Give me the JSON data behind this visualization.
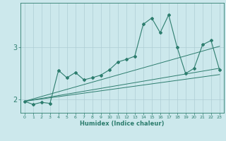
{
  "xlabel": "Humidex (Indice chaleur)",
  "bg_color": "#cce8ec",
  "line_color": "#2d7d6e",
  "grid_color": "#aecdd4",
  "xlim": [
    -0.5,
    23.5
  ],
  "ylim": [
    1.75,
    3.85
  ],
  "xtick_labels": [
    "0",
    "1",
    "2",
    "3",
    "4",
    "5",
    "6",
    "7",
    "8",
    "9",
    "10",
    "11",
    "12",
    "13",
    "14",
    "15",
    "16",
    "17",
    "18",
    "19",
    "20",
    "21",
    "22",
    "23"
  ],
  "xtick_vals": [
    0,
    1,
    2,
    3,
    4,
    5,
    6,
    7,
    8,
    9,
    10,
    11,
    12,
    13,
    14,
    15,
    16,
    17,
    18,
    19,
    20,
    21,
    22,
    23
  ],
  "ytick_vals": [
    2,
    3
  ],
  "ytick_labels": [
    "2",
    "3"
  ],
  "main_line_x": [
    0,
    1,
    2,
    3,
    4,
    5,
    6,
    7,
    8,
    9,
    10,
    11,
    12,
    13,
    14,
    15,
    16,
    17,
    18,
    19,
    20,
    21,
    22,
    23
  ],
  "main_line_y": [
    1.97,
    1.91,
    1.95,
    1.93,
    2.56,
    2.42,
    2.52,
    2.38,
    2.42,
    2.47,
    2.57,
    2.72,
    2.77,
    2.83,
    3.44,
    3.56,
    3.28,
    3.62,
    3.0,
    2.5,
    2.6,
    3.05,
    3.13,
    2.57
  ],
  "straight_lines": [
    {
      "x": [
        0,
        23
      ],
      "y": [
        1.97,
        3.02
      ]
    },
    {
      "x": [
        0,
        23
      ],
      "y": [
        1.97,
        2.6
      ]
    },
    {
      "x": [
        0,
        23
      ],
      "y": [
        1.97,
        2.48
      ]
    }
  ]
}
